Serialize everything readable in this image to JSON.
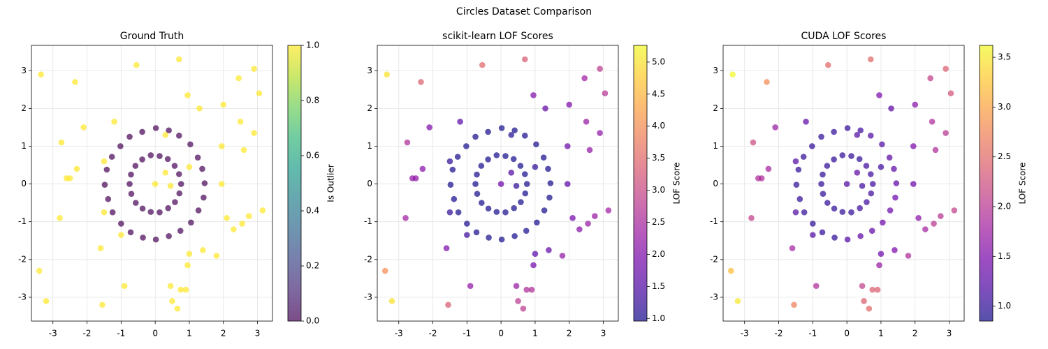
{
  "title": "Circles Dataset Comparison",
  "chart_data": [
    {
      "type": "scatter",
      "title": "Ground Truth",
      "colormap": "viridis",
      "alpha": 0.7,
      "grid": true,
      "xlim": [
        -3.63,
        3.44
      ],
      "ylim": [
        -3.63,
        3.67
      ],
      "xticks": [
        -3,
        -2,
        -1,
        0,
        1,
        2,
        3
      ],
      "yticks": [
        -3,
        -2,
        -1,
        0,
        1,
        2,
        3
      ],
      "colorbar_label": "Is Outlier",
      "clim": [
        0,
        1
      ],
      "cticks": [
        {
          "value": 0,
          "label": "0.0"
        },
        {
          "value": 0.2,
          "label": "0.2"
        },
        {
          "value": 0.4,
          "label": "0.4"
        },
        {
          "value": 0.6,
          "label": "0.6"
        },
        {
          "value": 0.8,
          "label": "0.8"
        },
        {
          "value": 1,
          "label": "1.0"
        }
      ],
      "x": [
        1.45,
        1.38,
        1.25,
        1.03,
        0.7,
        0.4,
        0.02,
        -0.38,
        -0.75,
        -1.02,
        -1.27,
        -1.42,
        -1.48,
        -1.38,
        -1.25,
        -1.0,
        -0.72,
        -0.36,
        0.02,
        0.4,
        0.74,
        1.05,
        1.27,
        1.42,
        0.76,
        0.7,
        0.57,
        0.37,
        0.13,
        -0.13,
        -0.38,
        -0.58,
        -0.71,
        -0.75,
        -0.7,
        -0.57,
        -0.37,
        -0.13,
        0.13,
        0.38,
        0.58,
        0.71,
        -3.35,
        -0.55,
        0.7,
        2.9,
        -2.35,
        0.95,
        2.45,
        3.05,
        1.3,
        2.0,
        -2.1,
        -1.2,
        2.5,
        2.9,
        -2.75,
        1.95,
        2.6,
        -2.3,
        -2.5,
        -2.6,
        1.95,
        0.3,
        0.0,
        -2.8,
        2.1,
        2.75,
        3.15,
        2.55,
        2.3,
        -1.0,
        -1.6,
        1.0,
        1.4,
        1.8,
        0.95,
        -0.9,
        0.45,
        0.75,
        0.9,
        -3.4,
        -3.2,
        -1.55,
        0.5,
        0.65,
        -1.5,
        0.3,
        1.0,
        -1.5,
        0.45
      ],
      "y": [
        0.02,
        0.4,
        0.7,
        1.05,
        1.28,
        1.42,
        1.48,
        1.38,
        1.25,
        1.0,
        0.72,
        0.38,
        -0.02,
        -0.4,
        -0.75,
        -1.05,
        -1.28,
        -1.42,
        -1.47,
        -1.38,
        -1.24,
        -1.02,
        -0.7,
        -0.36,
        0.0,
        0.26,
        0.48,
        0.66,
        0.74,
        0.76,
        0.65,
        0.48,
        0.25,
        0.0,
        -0.26,
        -0.5,
        -0.65,
        -0.74,
        -0.75,
        -0.64,
        -0.48,
        -0.25,
        2.9,
        3.15,
        3.3,
        3.05,
        2.7,
        2.35,
        2.8,
        2.4,
        2.0,
        2.1,
        1.5,
        1.65,
        1.65,
        1.35,
        1.1,
        1.0,
        0.9,
        0.4,
        0.15,
        0.15,
        0.0,
        0.3,
        0.0,
        -0.9,
        -0.9,
        -0.85,
        -0.7,
        -1.05,
        -1.2,
        -1.35,
        -1.7,
        -1.85,
        -1.75,
        -1.9,
        -2.15,
        -2.7,
        -2.7,
        -2.8,
        -2.8,
        -2.3,
        -3.1,
        -3.2,
        -3.1,
        -3.3,
        0.6,
        1.3,
        0.45,
        -0.75,
        -0.05
      ],
      "color_values": [
        0,
        0,
        0,
        0,
        0,
        0,
        0,
        0,
        0,
        0,
        0,
        0,
        0,
        0,
        0,
        0,
        0,
        0,
        0,
        0,
        0,
        0,
        0,
        0,
        0,
        0,
        0,
        0,
        0,
        0,
        0,
        0,
        0,
        0,
        0,
        0,
        0,
        0,
        0,
        0,
        0,
        0,
        1,
        1,
        1,
        1,
        1,
        1,
        1,
        1,
        1,
        1,
        1,
        1,
        1,
        1,
        1,
        1,
        1,
        1,
        1,
        1,
        1,
        1,
        1,
        1,
        1,
        1,
        1,
        1,
        1,
        1,
        1,
        1,
        1,
        1,
        1,
        1,
        1,
        1,
        1,
        1,
        1,
        1,
        1,
        1,
        1,
        1,
        1,
        1,
        1
      ]
    },
    {
      "type": "scatter",
      "title": "scikit-learn LOF Scores",
      "colormap": "plasma",
      "alpha": 0.7,
      "grid": true,
      "xlim": [
        -3.63,
        3.44
      ],
      "ylim": [
        -3.63,
        3.67
      ],
      "xticks": [
        -3,
        -2,
        -1,
        0,
        1,
        2,
        3
      ],
      "yticks": [
        -3,
        -2,
        -1,
        0,
        1,
        2,
        3
      ],
      "colorbar_label": "LOF Score",
      "clim": [
        0.96,
        5.26
      ],
      "cticks": [
        {
          "value": 1,
          "label": "1.0"
        },
        1.5,
        {
          "value": 2,
          "label": "2.0"
        },
        2.5,
        {
          "value": 3,
          "label": "3.0"
        },
        3.5,
        {
          "value": 4,
          "label": "4.0"
        },
        4.5,
        {
          "value": 5,
          "label": "5.0"
        }
      ],
      "x": [
        1.45,
        1.38,
        1.25,
        1.03,
        0.7,
        0.4,
        0.02,
        -0.38,
        -0.75,
        -1.02,
        -1.27,
        -1.42,
        -1.48,
        -1.38,
        -1.25,
        -1.0,
        -0.72,
        -0.36,
        0.02,
        0.4,
        0.74,
        1.05,
        1.27,
        1.42,
        0.76,
        0.7,
        0.57,
        0.37,
        0.13,
        -0.13,
        -0.38,
        -0.58,
        -0.71,
        -0.75,
        -0.7,
        -0.57,
        -0.37,
        -0.13,
        0.13,
        0.38,
        0.58,
        0.71,
        -3.35,
        -0.55,
        0.7,
        2.9,
        -2.35,
        0.95,
        2.45,
        3.05,
        1.3,
        2.0,
        -2.1,
        -1.2,
        2.5,
        2.9,
        -2.75,
        1.95,
        2.6,
        -2.3,
        -2.5,
        -2.6,
        1.95,
        0.3,
        0.0,
        -2.8,
        2.1,
        2.75,
        3.15,
        2.55,
        2.3,
        -1.0,
        -1.6,
        1.0,
        1.4,
        1.8,
        0.95,
        -0.9,
        0.45,
        0.75,
        0.9,
        -3.4,
        -3.2,
        -1.55,
        0.5,
        0.65,
        -1.5,
        0.3,
        1.0,
        -1.5,
        0.45
      ],
      "y": [
        0.02,
        0.4,
        0.7,
        1.05,
        1.28,
        1.42,
        1.48,
        1.38,
        1.25,
        1.0,
        0.72,
        0.38,
        -0.02,
        -0.4,
        -0.75,
        -1.05,
        -1.28,
        -1.42,
        -1.47,
        -1.38,
        -1.24,
        -1.02,
        -0.7,
        -0.36,
        0.0,
        0.26,
        0.48,
        0.66,
        0.74,
        0.76,
        0.65,
        0.48,
        0.25,
        0.0,
        -0.26,
        -0.5,
        -0.65,
        -0.74,
        -0.75,
        -0.64,
        -0.48,
        -0.25,
        2.9,
        3.15,
        3.3,
        3.05,
        2.7,
        2.35,
        2.8,
        2.4,
        2.0,
        2.1,
        1.5,
        1.65,
        1.65,
        1.35,
        1.1,
        1.0,
        0.9,
        0.4,
        0.15,
        0.15,
        0.0,
        0.3,
        0.0,
        -0.9,
        -0.9,
        -0.85,
        -0.7,
        -1.05,
        -1.2,
        -1.35,
        -1.7,
        -1.85,
        -1.75,
        -1.9,
        -2.15,
        -2.7,
        -2.7,
        -2.8,
        -2.8,
        -2.3,
        -3.1,
        -3.2,
        -3.1,
        -3.3,
        0.6,
        1.3,
        0.45,
        -0.75,
        -0.05
      ],
      "color_values": [
        1.0,
        1.0,
        1.0,
        1.0,
        1.0,
        1.0,
        1.0,
        1.0,
        1.0,
        1.0,
        1.0,
        1.0,
        1.0,
        1.0,
        1.0,
        1.0,
        1.0,
        1.0,
        1.0,
        1.0,
        1.0,
        1.0,
        1.0,
        1.0,
        1.0,
        1.0,
        1.0,
        1.0,
        1.0,
        1.0,
        1.0,
        1.0,
        1.0,
        1.0,
        1.0,
        1.0,
        1.0,
        1.0,
        1.0,
        1.0,
        1.0,
        1.0,
        5.0,
        3.5,
        3.3,
        2.8,
        3.4,
        2.0,
        2.4,
        2.7,
        1.7,
        2.0,
        2.0,
        1.6,
        2.3,
        2.2,
        2.6,
        1.8,
        2.2,
        2.1,
        2.2,
        2.2,
        1.6,
        1.5,
        1.8,
        2.4,
        1.9,
        2.3,
        2.4,
        2.3,
        2.1,
        1.3,
        2.0,
        1.6,
        1.7,
        2.2,
        1.9,
        2.2,
        2.3,
        2.6,
        2.6,
        4.0,
        5.0,
        3.3,
        2.8,
        2.8,
        1.2,
        1.1,
        1.2,
        1.2,
        1.2
      ]
    },
    {
      "type": "scatter",
      "title": "CUDA LOF Scores",
      "colormap": "plasma",
      "alpha": 0.7,
      "grid": true,
      "xlim": [
        -3.63,
        3.44
      ],
      "ylim": [
        -3.63,
        3.67
      ],
      "xticks": [
        -3,
        -2,
        -1,
        0,
        1,
        2,
        3
      ],
      "yticks": [
        -3,
        -2,
        -1,
        0,
        1,
        2,
        3
      ],
      "colorbar_label": "LOF Score",
      "clim": [
        0.85,
        3.62
      ],
      "cticks": [
        {
          "value": 1,
          "label": "1.0"
        },
        1.5,
        {
          "value": 2,
          "label": "2.0"
        },
        2.5,
        {
          "value": 3,
          "label": "3.0"
        },
        3.5
      ],
      "x": [
        1.45,
        1.38,
        1.25,
        1.03,
        0.7,
        0.4,
        0.02,
        -0.38,
        -0.75,
        -1.02,
        -1.27,
        -1.42,
        -1.48,
        -1.38,
        -1.25,
        -1.0,
        -0.72,
        -0.36,
        0.02,
        0.4,
        0.74,
        1.05,
        1.27,
        1.42,
        0.76,
        0.7,
        0.57,
        0.37,
        0.13,
        -0.13,
        -0.38,
        -0.58,
        -0.71,
        -0.75,
        -0.7,
        -0.57,
        -0.37,
        -0.13,
        0.13,
        0.38,
        0.58,
        0.71,
        -3.35,
        -0.55,
        0.7,
        2.9,
        -2.35,
        0.95,
        2.45,
        3.05,
        1.3,
        2.0,
        -2.1,
        -1.2,
        2.5,
        2.9,
        -2.75,
        1.95,
        2.6,
        -2.3,
        -2.5,
        -2.6,
        1.95,
        0.3,
        0.0,
        -2.8,
        2.1,
        2.75,
        3.15,
        2.55,
        2.3,
        -1.0,
        -1.6,
        1.0,
        1.4,
        1.8,
        0.95,
        -0.9,
        0.45,
        0.75,
        0.9,
        -3.4,
        -3.2,
        -1.55,
        0.5,
        0.65,
        -1.5,
        0.3,
        1.0,
        -1.5,
        0.45
      ],
      "y": [
        0.02,
        0.4,
        0.7,
        1.05,
        1.28,
        1.42,
        1.48,
        1.38,
        1.25,
        1.0,
        0.72,
        0.38,
        -0.02,
        -0.4,
        -0.75,
        -1.05,
        -1.28,
        -1.42,
        -1.47,
        -1.38,
        -1.24,
        -1.02,
        -0.7,
        -0.36,
        0.0,
        0.26,
        0.48,
        0.66,
        0.74,
        0.76,
        0.65,
        0.48,
        0.25,
        0.0,
        -0.26,
        -0.5,
        -0.65,
        -0.74,
        -0.75,
        -0.64,
        -0.48,
        -0.25,
        2.9,
        3.15,
        3.3,
        3.05,
        2.7,
        2.35,
        2.8,
        2.4,
        2.0,
        2.1,
        1.5,
        1.65,
        1.65,
        1.35,
        1.1,
        1.0,
        0.9,
        0.4,
        0.15,
        0.15,
        0.0,
        0.3,
        0.0,
        -0.9,
        -0.9,
        -0.85,
        -0.7,
        -1.05,
        -1.2,
        -1.35,
        -1.7,
        -1.85,
        -1.75,
        -1.9,
        -2.15,
        -2.7,
        -2.7,
        -2.8,
        -2.8,
        -2.3,
        -3.1,
        -3.2,
        -3.1,
        -3.3,
        0.6,
        1.3,
        0.45,
        -0.75,
        -0.05
      ],
      "color_values": [
        1.3,
        1.3,
        1.3,
        1.2,
        1.2,
        1.1,
        1.0,
        1.0,
        1.0,
        1.0,
        1.0,
        1.0,
        1.0,
        1.0,
        1.0,
        1.0,
        1.0,
        1.0,
        1.2,
        1.3,
        1.3,
        1.4,
        1.4,
        1.4,
        1.1,
        1.1,
        1.1,
        1.0,
        1.0,
        1.0,
        1.0,
        1.0,
        1.0,
        1.0,
        1.0,
        1.0,
        1.0,
        1.0,
        1.0,
        1.1,
        1.1,
        1.1,
        3.6,
        2.5,
        2.5,
        2.4,
        2.8,
        1.5,
        2.1,
        2.3,
        1.3,
        1.6,
        1.7,
        1.3,
        1.9,
        2.0,
        2.2,
        1.5,
        1.9,
        1.8,
        1.9,
        1.9,
        1.4,
        1.3,
        1.2,
        2.1,
        1.6,
        2.0,
        2.1,
        2.0,
        1.8,
        1.2,
        1.8,
        1.4,
        1.5,
        1.9,
        1.7,
        1.9,
        2.1,
        2.4,
        2.4,
        3.2,
        3.5,
        2.7,
        2.4,
        2.5,
        1.2,
        1.2,
        1.1,
        1.2,
        1.1
      ]
    }
  ]
}
